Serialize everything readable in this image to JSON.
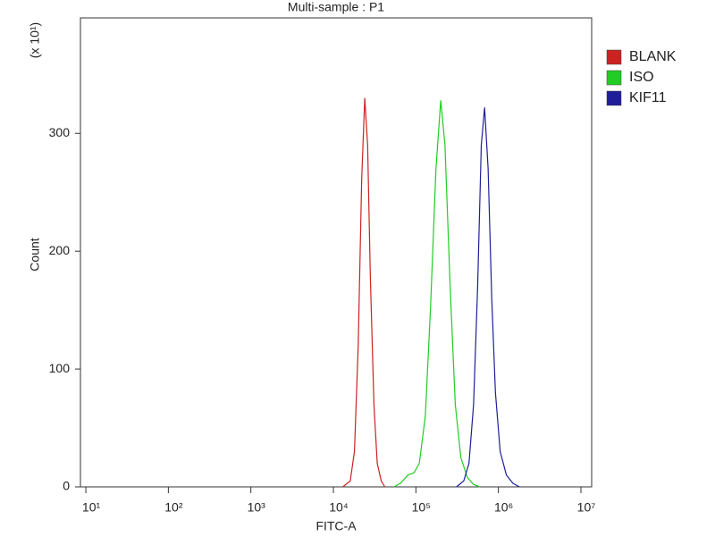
{
  "chart_data": {
    "type": "line",
    "title": "Multi-sample : P1",
    "x_label": "FITC-A",
    "y_label": "Count",
    "y_unit_label": "(x 10¹)",
    "xscale": "log",
    "xlim": [
      8.6,
      13490000
    ],
    "ylim": [
      0,
      398
    ],
    "xticks": [
      {
        "value": 10,
        "label": "10¹"
      },
      {
        "value": 100,
        "label": "10²"
      },
      {
        "value": 1000,
        "label": "10³"
      },
      {
        "value": 10000,
        "label": "10⁴"
      },
      {
        "value": 100000,
        "label": "10⁵"
      },
      {
        "value": 1000000,
        "label": "10⁶"
      },
      {
        "value": 10000000,
        "label": "10⁷"
      }
    ],
    "yticks": [
      0,
      100,
      200,
      300
    ],
    "grid": false,
    "legend": "top-right",
    "series": [
      {
        "name": "BLANK",
        "color": "#cc2222",
        "x": [
          13000,
          16000,
          18000,
          20000,
          22000,
          24000,
          26000,
          28000,
          31000,
          34000,
          38000,
          42000
        ],
        "values": [
          0,
          5,
          30,
          120,
          260,
          330,
          290,
          180,
          70,
          20,
          5,
          0
        ]
      },
      {
        "name": "ISO",
        "color": "#22cc22",
        "x": [
          54000,
          65000,
          80000,
          95000,
          110000,
          130000,
          150000,
          175000,
          200000,
          225000,
          260000,
          300000,
          350000,
          420000,
          500000,
          600000
        ],
        "values": [
          0,
          3,
          10,
          12,
          20,
          60,
          150,
          270,
          328,
          290,
          170,
          70,
          25,
          8,
          2,
          0
        ]
      },
      {
        "name": "KIF11",
        "color": "#1f1f99",
        "x": [
          310000,
          380000,
          440000,
          500000,
          560000,
          620000,
          680000,
          750000,
          830000,
          920000,
          1050000,
          1250000,
          1500000,
          1800000
        ],
        "values": [
          0,
          5,
          20,
          70,
          170,
          290,
          322,
          270,
          160,
          80,
          30,
          10,
          3,
          0
        ]
      }
    ]
  }
}
